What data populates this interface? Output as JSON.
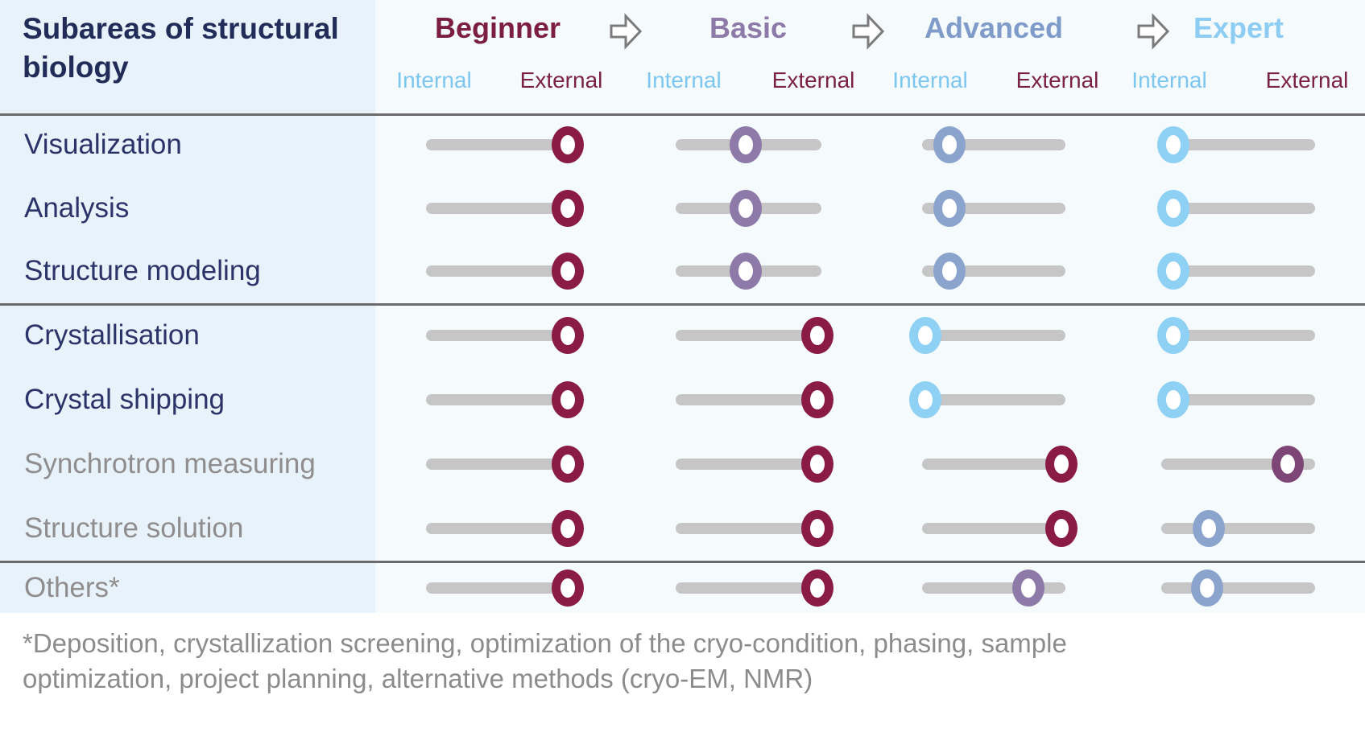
{
  "header": {
    "title": "Subareas of structural biology",
    "levels": [
      {
        "label": "Beginner",
        "color": "#7b1e41"
      },
      {
        "label": "Basic",
        "color": "#8d7aa8"
      },
      {
        "label": "Advanced",
        "color": "#7f9bca"
      },
      {
        "label": "Expert",
        "color": "#8ecdf3"
      }
    ],
    "scale": {
      "internal_label": "Internal",
      "external_label": "External",
      "internal_color": "#7cc6f0",
      "external_color": "#7b2143"
    },
    "arrow_icon": "right-arrow"
  },
  "colors": {
    "maroon": "#8a1b44",
    "purple": "#8d7aa8",
    "slate": "#8ba4ce",
    "lightblue": "#8fd0f5",
    "plum": "#7e4577",
    "track": "#c6c6c6",
    "label_navy": "#2b3469",
    "label_gray": "#8f8d8d"
  },
  "chart_data": {
    "type": "table",
    "title": "Subareas of structural biology",
    "levels": [
      "Beginner",
      "Basic",
      "Advanced",
      "Expert"
    ],
    "scale": {
      "left": "Internal",
      "right": "External"
    },
    "position_definition": "0 = Internal end of track, 100 = External end of track",
    "groups": [
      {
        "rows": [
          {
            "label": "Visualization",
            "label_style": "navy",
            "sliders": [
              {
                "level": "Beginner",
                "position_pct": 99,
                "color": "maroon"
              },
              {
                "level": "Basic",
                "position_pct": 48,
                "color": "purple"
              },
              {
                "level": "Advanced",
                "position_pct": 19,
                "color": "slate"
              },
              {
                "level": "Expert",
                "position_pct": 8,
                "color": "lightblue"
              }
            ]
          },
          {
            "label": "Analysis",
            "label_style": "navy",
            "sliders": [
              {
                "level": "Beginner",
                "position_pct": 99,
                "color": "maroon"
              },
              {
                "level": "Basic",
                "position_pct": 48,
                "color": "purple"
              },
              {
                "level": "Advanced",
                "position_pct": 19,
                "color": "slate"
              },
              {
                "level": "Expert",
                "position_pct": 8,
                "color": "lightblue"
              }
            ]
          },
          {
            "label": "Structure modeling",
            "label_style": "navy",
            "sliders": [
              {
                "level": "Beginner",
                "position_pct": 99,
                "color": "maroon"
              },
              {
                "level": "Basic",
                "position_pct": 48,
                "color": "purple"
              },
              {
                "level": "Advanced",
                "position_pct": 19,
                "color": "slate"
              },
              {
                "level": "Expert",
                "position_pct": 8,
                "color": "lightblue"
              }
            ]
          }
        ]
      },
      {
        "rows": [
          {
            "label": "Crystallisation",
            "label_style": "navy",
            "sliders": [
              {
                "level": "Beginner",
                "position_pct": 99,
                "color": "maroon"
              },
              {
                "level": "Basic",
                "position_pct": 97,
                "color": "maroon"
              },
              {
                "level": "Advanced",
                "position_pct": 2,
                "color": "lightblue"
              },
              {
                "level": "Expert",
                "position_pct": 8,
                "color": "lightblue"
              }
            ]
          },
          {
            "label": "Crystal shipping",
            "label_style": "navy",
            "sliders": [
              {
                "level": "Beginner",
                "position_pct": 99,
                "color": "maroon"
              },
              {
                "level": "Basic",
                "position_pct": 97,
                "color": "maroon"
              },
              {
                "level": "Advanced",
                "position_pct": 2,
                "color": "lightblue"
              },
              {
                "level": "Expert",
                "position_pct": 8,
                "color": "lightblue"
              }
            ]
          },
          {
            "label": "Synchrotron measuring",
            "label_style": "gray",
            "sliders": [
              {
                "level": "Beginner",
                "position_pct": 99,
                "color": "maroon"
              },
              {
                "level": "Basic",
                "position_pct": 97,
                "color": "maroon"
              },
              {
                "level": "Advanced",
                "position_pct": 97,
                "color": "maroon"
              },
              {
                "level": "Expert",
                "position_pct": 82,
                "color": "plum"
              }
            ]
          },
          {
            "label": "Structure solution",
            "label_style": "gray",
            "sliders": [
              {
                "level": "Beginner",
                "position_pct": 99,
                "color": "maroon"
              },
              {
                "level": "Basic",
                "position_pct": 97,
                "color": "maroon"
              },
              {
                "level": "Advanced",
                "position_pct": 97,
                "color": "maroon"
              },
              {
                "level": "Expert",
                "position_pct": 31,
                "color": "slate"
              }
            ]
          }
        ]
      },
      {
        "rows": [
          {
            "label": "Others*",
            "label_style": "gray",
            "sliders": [
              {
                "level": "Beginner",
                "position_pct": 99,
                "color": "maroon"
              },
              {
                "level": "Basic",
                "position_pct": 97,
                "color": "maroon"
              },
              {
                "level": "Advanced",
                "position_pct": 74,
                "color": "purple"
              },
              {
                "level": "Expert",
                "position_pct": 30,
                "color": "slate"
              }
            ]
          }
        ]
      }
    ],
    "footnote": "*Deposition, crystallization screening, optimization of the cryo-condition, phasing, sample optimization, project planning, alternative methods (cryo-EM, NMR)"
  }
}
